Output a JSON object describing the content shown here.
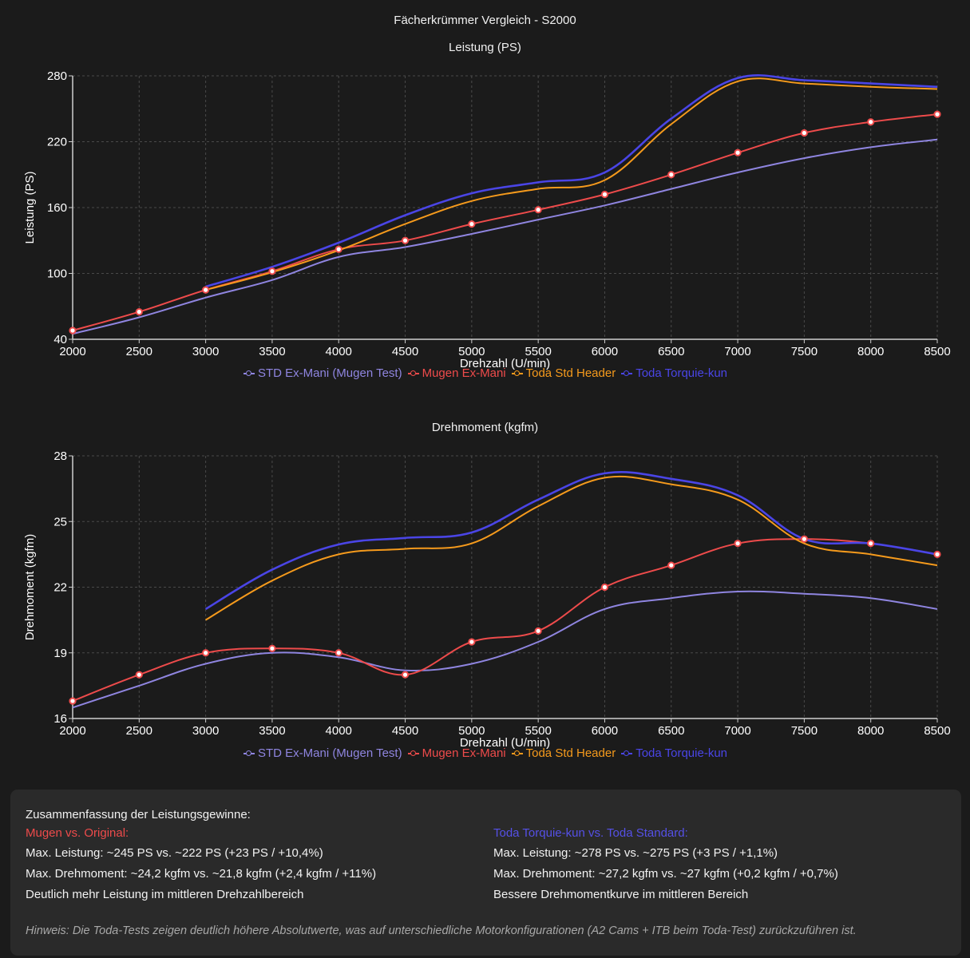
{
  "page_title": "Fächerkrümmer Vergleich - S2000",
  "colors": {
    "std": "#8f85e0",
    "mugen": "#ee4b4b",
    "toda_std": "#f59a1c",
    "toda_torquie": "#4a45e6",
    "grid": "#4a4a4a",
    "axis": "#cfcfcf"
  },
  "legend": [
    {
      "key": "std",
      "label": "STD Ex-Mani (Mugen Test)"
    },
    {
      "key": "mugen",
      "label": "Mugen Ex-Mani"
    },
    {
      "key": "toda_std",
      "label": "Toda Std Header"
    },
    {
      "key": "toda_torquie",
      "label": "Toda Torquie-kun"
    }
  ],
  "chart_data": [
    {
      "type": "line",
      "title": "Leistung (PS)",
      "xlabel": "Drehzahl (U/min)",
      "ylabel": "Leistung (PS)",
      "x": [
        2000,
        2500,
        3000,
        3500,
        4000,
        4500,
        5000,
        5500,
        6000,
        6500,
        7000,
        7500,
        8000,
        8500
      ],
      "xticks": [
        "2000",
        "2500",
        "3000",
        "3500",
        "4000",
        "4500",
        "5000",
        "5500",
        "6000",
        "6500",
        "7000",
        "7500",
        "8000",
        "8500"
      ],
      "yticks": [
        "40",
        "100",
        "160",
        "220",
        "280"
      ],
      "xlim": [
        2000,
        8500
      ],
      "ylim": [
        40,
        280
      ],
      "grid": true,
      "legend_position": "bottom",
      "series": [
        {
          "key": "std",
          "name": "STD Ex-Mani (Mugen Test)",
          "markers": false,
          "values": [
            45,
            60,
            78,
            94,
            115,
            124,
            136,
            149,
            162,
            177,
            192,
            205,
            215,
            222
          ]
        },
        {
          "key": "mugen",
          "name": "Mugen Ex-Mani",
          "markers": true,
          "values": [
            48,
            65,
            85,
            102,
            122,
            130,
            145,
            158,
            172,
            190,
            210,
            228,
            238,
            245
          ]
        },
        {
          "key": "toda_std",
          "name": "Toda Std Header",
          "markers": false,
          "values": [
            null,
            null,
            85,
            101,
            121,
            145,
            166,
            177,
            185,
            236,
            275,
            273,
            270,
            268
          ]
        },
        {
          "key": "toda_torquie",
          "name": "Toda Torquie-kun",
          "markers": false,
          "values": [
            null,
            null,
            88,
            106,
            128,
            153,
            173,
            183,
            192,
            241,
            278,
            276,
            273,
            270
          ]
        }
      ]
    },
    {
      "type": "line",
      "title": "Drehmoment (kgfm)",
      "xlabel": "Drehzahl (U/min)",
      "ylabel": "Drehmoment (kgfm)",
      "x": [
        2000,
        2500,
        3000,
        3500,
        4000,
        4500,
        5000,
        5500,
        6000,
        6500,
        7000,
        7500,
        8000,
        8500
      ],
      "xticks": [
        "2000",
        "2500",
        "3000",
        "3500",
        "4000",
        "4500",
        "5000",
        "5500",
        "6000",
        "6500",
        "7000",
        "7500",
        "8000",
        "8500"
      ],
      "yticks": [
        "16",
        "19",
        "22",
        "25",
        "28"
      ],
      "xlim": [
        2000,
        8500
      ],
      "ylim": [
        16,
        28
      ],
      "grid": true,
      "legend_position": "bottom",
      "series": [
        {
          "key": "std",
          "name": "STD Ex-Mani (Mugen Test)",
          "markers": false,
          "values": [
            16.5,
            17.5,
            18.5,
            19.0,
            18.8,
            18.2,
            18.5,
            19.5,
            21.0,
            21.5,
            21.8,
            21.7,
            21.5,
            21.0
          ]
        },
        {
          "key": "mugen",
          "name": "Mugen Ex-Mani",
          "markers": true,
          "values": [
            16.8,
            18.0,
            19.0,
            19.2,
            19.0,
            18.0,
            19.5,
            20.0,
            22.0,
            23.0,
            24.0,
            24.2,
            24.0,
            23.5
          ]
        },
        {
          "key": "toda_std",
          "name": "Toda Std Header",
          "markers": false,
          "values": [
            null,
            null,
            20.5,
            22.3,
            23.5,
            23.75,
            24.0,
            25.7,
            27.0,
            26.7,
            26.0,
            24.0,
            23.5,
            23.0
          ]
        },
        {
          "key": "toda_torquie",
          "name": "Toda Torquie-kun",
          "markers": false,
          "values": [
            null,
            null,
            21.0,
            22.8,
            23.95,
            24.25,
            24.5,
            26.0,
            27.2,
            26.95,
            26.2,
            24.2,
            24.0,
            23.5
          ]
        }
      ]
    }
  ],
  "summary": {
    "heading": "Zusammenfassung der Leistungsgewinne:",
    "left": {
      "title": "Mugen vs. Original:",
      "lines": [
        "Max. Leistung: ~245 PS vs. ~222 PS (+23 PS / +10,4%)",
        "Max. Drehmoment: ~24,2 kgfm vs. ~21,8 kgfm (+2,4 kgfm / +11%)",
        "Deutlich mehr Leistung im mittleren Drehzahlbereich"
      ]
    },
    "right": {
      "title": "Toda Torquie-kun vs. Toda Standard:",
      "lines": [
        "Max. Leistung: ~278 PS vs. ~275 PS (+3 PS / +1,1%)",
        "Max. Drehmoment: ~27,2 kgfm vs. ~27 kgfm (+0,2 kgfm / +0,7%)",
        "Bessere Drehmomentkurve im mittleren Bereich"
      ]
    },
    "note": "Hinweis: Die Toda-Tests zeigen deutlich höhere Absolutwerte, was auf unterschiedliche Motorkonfigurationen (A2 Cams + ITB beim Toda-Test) zurückzuführen ist."
  }
}
